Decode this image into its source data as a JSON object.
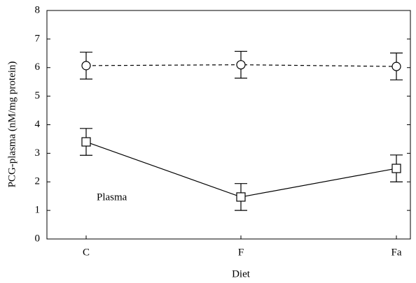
{
  "chart_data": {
    "type": "line",
    "categories": [
      "C",
      "F",
      "Fa"
    ],
    "series": [
      {
        "color": "#000000",
        "dash": true,
        "marker": "circle",
        "values": [
          6.07,
          6.1,
          6.04
        ],
        "errors": [
          0.47,
          0.47,
          0.47
        ]
      },
      {
        "color": "#000000",
        "dash": false,
        "marker": "square",
        "values": [
          3.4,
          1.47,
          2.47
        ],
        "errors": [
          0.47,
          0.47,
          0.47
        ]
      }
    ],
    "ylabel": "PCG-plasma (nM/mg protein)",
    "xlabel": "Diet",
    "annotation": "Plasma",
    "ylim": [
      0,
      8
    ],
    "yticks": [
      0,
      1,
      2,
      3,
      4,
      5,
      6,
      7,
      8
    ],
    "grid": false
  }
}
